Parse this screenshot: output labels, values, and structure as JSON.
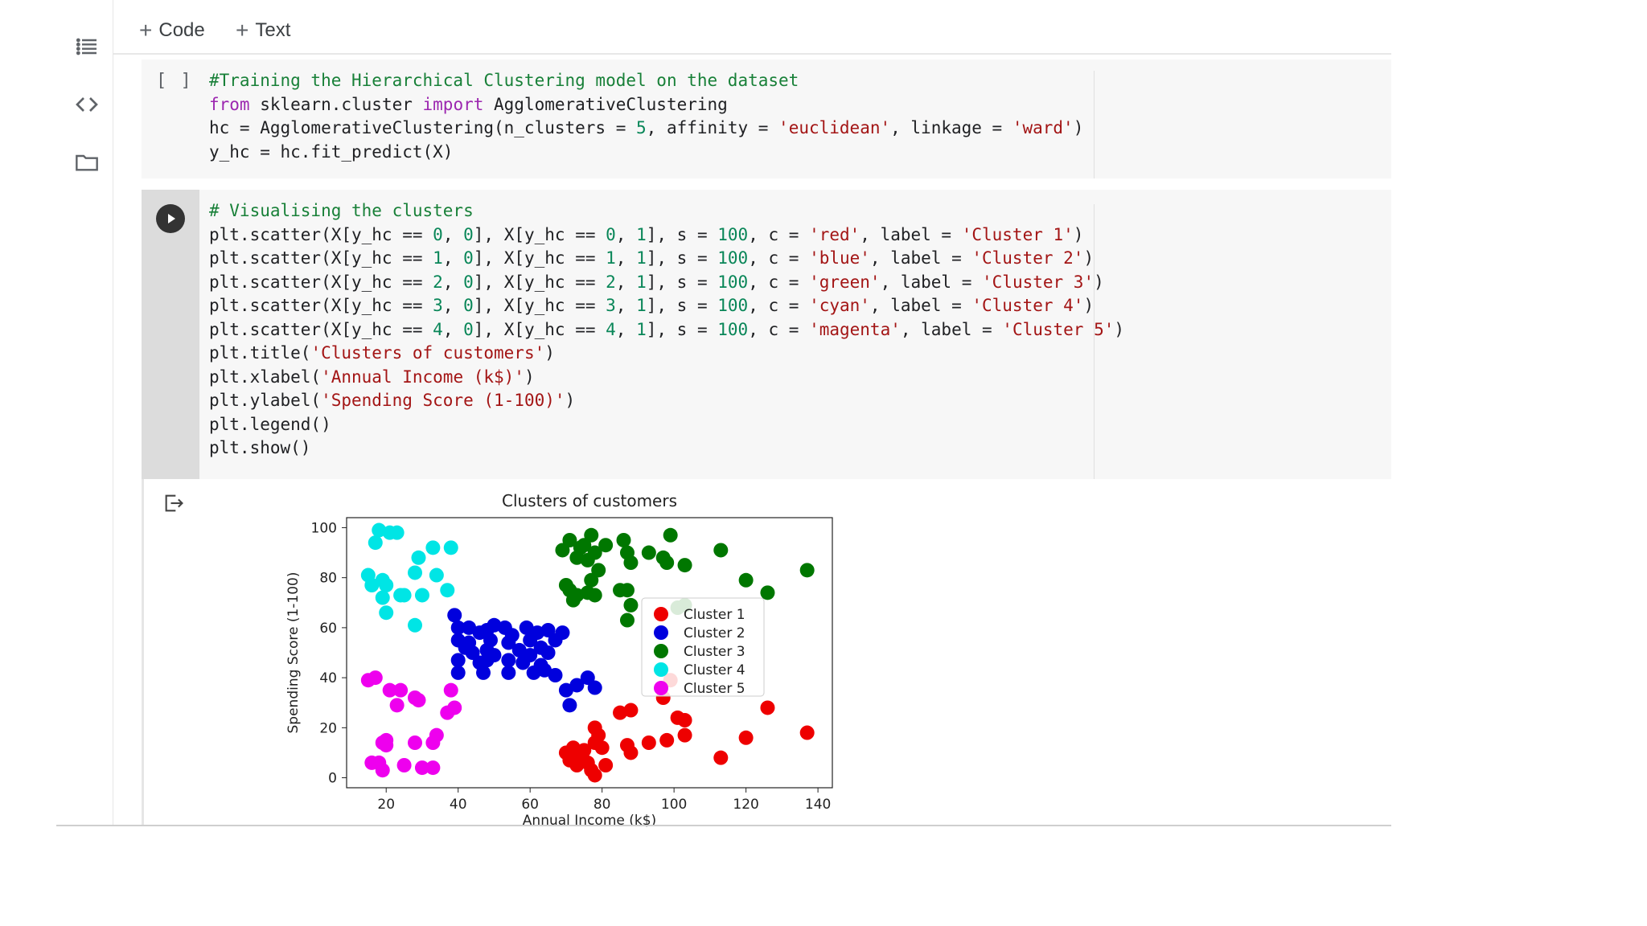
{
  "toolbar": {
    "code_label": "Code",
    "text_label": "Text"
  },
  "cell1": {
    "status": "[ ]",
    "lines": [
      [
        {
          "t": "#Training the Hierarchical Clustering model on the dataset",
          "c": "cmt"
        }
      ],
      [
        {
          "t": "from",
          "c": "kw"
        },
        {
          "t": " sklearn.cluster "
        },
        {
          "t": "import",
          "c": "kw"
        },
        {
          "t": " AgglomerativeClustering"
        }
      ],
      [
        {
          "t": "hc = AgglomerativeClustering(n_clusters = "
        },
        {
          "t": "5",
          "c": "num"
        },
        {
          "t": ", affinity = "
        },
        {
          "t": "'euclidean'",
          "c": "str"
        },
        {
          "t": ", linkage = "
        },
        {
          "t": "'ward'",
          "c": "str"
        },
        {
          "t": ")"
        }
      ],
      [
        {
          "t": "y_hc = hc.fit_predict(X)"
        }
      ]
    ]
  },
  "cell2": {
    "lines": [
      [
        {
          "t": "# Visualising the clusters",
          "c": "cmt"
        }
      ],
      [
        {
          "t": "plt.scatter(X[y_hc == "
        },
        {
          "t": "0",
          "c": "num"
        },
        {
          "t": ", "
        },
        {
          "t": "0",
          "c": "num"
        },
        {
          "t": "], X[y_hc == "
        },
        {
          "t": "0",
          "c": "num"
        },
        {
          "t": ", "
        },
        {
          "t": "1",
          "c": "num"
        },
        {
          "t": "], s = "
        },
        {
          "t": "100",
          "c": "num"
        },
        {
          "t": ", c = "
        },
        {
          "t": "'red'",
          "c": "str"
        },
        {
          "t": ", label = "
        },
        {
          "t": "'Cluster 1'",
          "c": "str"
        },
        {
          "t": ")"
        }
      ],
      [
        {
          "t": "plt.scatter(X[y_hc == "
        },
        {
          "t": "1",
          "c": "num"
        },
        {
          "t": ", "
        },
        {
          "t": "0",
          "c": "num"
        },
        {
          "t": "], X[y_hc == "
        },
        {
          "t": "1",
          "c": "num"
        },
        {
          "t": ", "
        },
        {
          "t": "1",
          "c": "num"
        },
        {
          "t": "], s = "
        },
        {
          "t": "100",
          "c": "num"
        },
        {
          "t": ", c = "
        },
        {
          "t": "'blue'",
          "c": "str"
        },
        {
          "t": ", label = "
        },
        {
          "t": "'Cluster 2'",
          "c": "str"
        },
        {
          "t": ")"
        }
      ],
      [
        {
          "t": "plt.scatter(X[y_hc == "
        },
        {
          "t": "2",
          "c": "num"
        },
        {
          "t": ", "
        },
        {
          "t": "0",
          "c": "num"
        },
        {
          "t": "], X[y_hc == "
        },
        {
          "t": "2",
          "c": "num"
        },
        {
          "t": ", "
        },
        {
          "t": "1",
          "c": "num"
        },
        {
          "t": "], s = "
        },
        {
          "t": "100",
          "c": "num"
        },
        {
          "t": ", c = "
        },
        {
          "t": "'green'",
          "c": "str"
        },
        {
          "t": ", label = "
        },
        {
          "t": "'Cluster 3'",
          "c": "str"
        },
        {
          "t": ")"
        }
      ],
      [
        {
          "t": "plt.scatter(X[y_hc == "
        },
        {
          "t": "3",
          "c": "num"
        },
        {
          "t": ", "
        },
        {
          "t": "0",
          "c": "num"
        },
        {
          "t": "], X[y_hc == "
        },
        {
          "t": "3",
          "c": "num"
        },
        {
          "t": ", "
        },
        {
          "t": "1",
          "c": "num"
        },
        {
          "t": "], s = "
        },
        {
          "t": "100",
          "c": "num"
        },
        {
          "t": ", c = "
        },
        {
          "t": "'cyan'",
          "c": "str"
        },
        {
          "t": ", label = "
        },
        {
          "t": "'Cluster 4'",
          "c": "str"
        },
        {
          "t": ")"
        }
      ],
      [
        {
          "t": "plt.scatter(X[y_hc == "
        },
        {
          "t": "4",
          "c": "num"
        },
        {
          "t": ", "
        },
        {
          "t": "0",
          "c": "num"
        },
        {
          "t": "], X[y_hc == "
        },
        {
          "t": "4",
          "c": "num"
        },
        {
          "t": ", "
        },
        {
          "t": "1",
          "c": "num"
        },
        {
          "t": "], s = "
        },
        {
          "t": "100",
          "c": "num"
        },
        {
          "t": ", c = "
        },
        {
          "t": "'magenta'",
          "c": "str"
        },
        {
          "t": ", label = "
        },
        {
          "t": "'Cluster 5'",
          "c": "str"
        },
        {
          "t": ")"
        }
      ],
      [
        {
          "t": "plt.title("
        },
        {
          "t": "'Clusters of customers'",
          "c": "str"
        },
        {
          "t": ")"
        }
      ],
      [
        {
          "t": "plt.xlabel("
        },
        {
          "t": "'Annual Income (k$)'",
          "c": "str"
        },
        {
          "t": ")"
        }
      ],
      [
        {
          "t": "plt.ylabel("
        },
        {
          "t": "'Spending Score (1-100)'",
          "c": "str"
        },
        {
          "t": ")"
        }
      ],
      [
        {
          "t": "plt.legend()"
        }
      ],
      [
        {
          "t": "plt.show()"
        }
      ]
    ]
  },
  "chart_data": {
    "type": "scatter",
    "title": "Clusters of customers",
    "xlabel": "Annual Income (k$)",
    "ylabel": "Spending Score (1-100)",
    "xlim": [
      9,
      144
    ],
    "ylim": [
      -4,
      104
    ],
    "xticks": [
      20,
      40,
      60,
      80,
      100,
      120,
      140
    ],
    "yticks": [
      0,
      20,
      40,
      60,
      80,
      100
    ],
    "grid": false,
    "legend_position": "center-right",
    "series": [
      {
        "name": "Cluster 1",
        "color": "#ee0000",
        "points": [
          [
            70,
            10
          ],
          [
            71,
            7
          ],
          [
            72,
            12
          ],
          [
            73,
            5
          ],
          [
            74,
            9
          ],
          [
            75,
            11
          ],
          [
            76,
            6
          ],
          [
            77,
            3
          ],
          [
            78,
            14
          ],
          [
            78,
            20
          ],
          [
            78,
            1
          ],
          [
            79,
            17
          ],
          [
            80,
            12
          ],
          [
            81,
            5
          ],
          [
            85,
            26
          ],
          [
            87,
            13
          ],
          [
            88,
            27
          ],
          [
            88,
            10
          ],
          [
            93,
            14
          ],
          [
            97,
            32
          ],
          [
            98,
            15
          ],
          [
            99,
            39
          ],
          [
            101,
            24
          ],
          [
            103,
            23
          ],
          [
            103,
            17
          ],
          [
            113,
            8
          ],
          [
            120,
            16
          ],
          [
            126,
            28
          ],
          [
            137,
            18
          ]
        ]
      },
      {
        "name": "Cluster 2",
        "color": "#0000dd",
        "points": [
          [
            39,
            65
          ],
          [
            40,
            60
          ],
          [
            40,
            55
          ],
          [
            40,
            47
          ],
          [
            40,
            42
          ],
          [
            42,
            52
          ],
          [
            43,
            60
          ],
          [
            43,
            54
          ],
          [
            44,
            50
          ],
          [
            46,
            58
          ],
          [
            46,
            46
          ],
          [
            47,
            42
          ],
          [
            48,
            59
          ],
          [
            48,
            51
          ],
          [
            48,
            47
          ],
          [
            49,
            55
          ],
          [
            50,
            61
          ],
          [
            50,
            49
          ],
          [
            53,
            60
          ],
          [
            54,
            54
          ],
          [
            54,
            47
          ],
          [
            54,
            42
          ],
          [
            55,
            57
          ],
          [
            57,
            51
          ],
          [
            58,
            46
          ],
          [
            59,
            60
          ],
          [
            60,
            55
          ],
          [
            60,
            49
          ],
          [
            61,
            42
          ],
          [
            62,
            58
          ],
          [
            63,
            52
          ],
          [
            63,
            45
          ],
          [
            64,
            43
          ],
          [
            65,
            59
          ],
          [
            65,
            50
          ],
          [
            67,
            55
          ],
          [
            67,
            41
          ],
          [
            69,
            58
          ],
          [
            70,
            35
          ],
          [
            71,
            29
          ],
          [
            73,
            37
          ],
          [
            76,
            40
          ],
          [
            78,
            36
          ]
        ]
      },
      {
        "name": "Cluster 3",
        "color": "#007700",
        "points": [
          [
            69,
            91
          ],
          [
            70,
            77
          ],
          [
            71,
            95
          ],
          [
            71,
            75
          ],
          [
            72,
            71
          ],
          [
            73,
            88
          ],
          [
            73,
            73
          ],
          [
            74,
            92
          ],
          [
            75,
            93
          ],
          [
            76,
            87
          ],
          [
            76,
            74
          ],
          [
            77,
            97
          ],
          [
            77,
            79
          ],
          [
            78,
            90
          ],
          [
            78,
            73
          ],
          [
            79,
            83
          ],
          [
            81,
            93
          ],
          [
            85,
            75
          ],
          [
            86,
            95
          ],
          [
            87,
            90
          ],
          [
            87,
            63
          ],
          [
            87,
            75
          ],
          [
            88,
            69
          ],
          [
            88,
            86
          ],
          [
            93,
            90
          ],
          [
            97,
            88
          ],
          [
            98,
            86
          ],
          [
            99,
            97
          ],
          [
            101,
            68
          ],
          [
            103,
            69
          ],
          [
            103,
            85
          ],
          [
            113,
            91
          ],
          [
            120,
            79
          ],
          [
            126,
            74
          ],
          [
            137,
            83
          ]
        ]
      },
      {
        "name": "Cluster 4",
        "color": "#00e5e5",
        "points": [
          [
            15,
            81
          ],
          [
            16,
            77
          ],
          [
            17,
            94
          ],
          [
            18,
            99
          ],
          [
            19,
            72
          ],
          [
            19,
            79
          ],
          [
            20,
            77
          ],
          [
            20,
            66
          ],
          [
            21,
            98
          ],
          [
            23,
            98
          ],
          [
            24,
            73
          ],
          [
            25,
            73
          ],
          [
            28,
            82
          ],
          [
            28,
            61
          ],
          [
            29,
            88
          ],
          [
            30,
            73
          ],
          [
            33,
            92
          ],
          [
            34,
            81
          ],
          [
            37,
            75
          ],
          [
            38,
            92
          ]
        ]
      },
      {
        "name": "Cluster 5",
        "color": "#ee00ee",
        "points": [
          [
            15,
            39
          ],
          [
            16,
            6
          ],
          [
            17,
            40
          ],
          [
            18,
            6
          ],
          [
            19,
            3
          ],
          [
            19,
            14
          ],
          [
            20,
            15
          ],
          [
            20,
            13
          ],
          [
            21,
            35
          ],
          [
            23,
            29
          ],
          [
            24,
            35
          ],
          [
            25,
            5
          ],
          [
            28,
            14
          ],
          [
            28,
            32
          ],
          [
            29,
            31
          ],
          [
            30,
            4
          ],
          [
            33,
            4
          ],
          [
            33,
            14
          ],
          [
            34,
            17
          ],
          [
            37,
            26
          ],
          [
            38,
            35
          ],
          [
            39,
            28
          ]
        ]
      }
    ]
  }
}
